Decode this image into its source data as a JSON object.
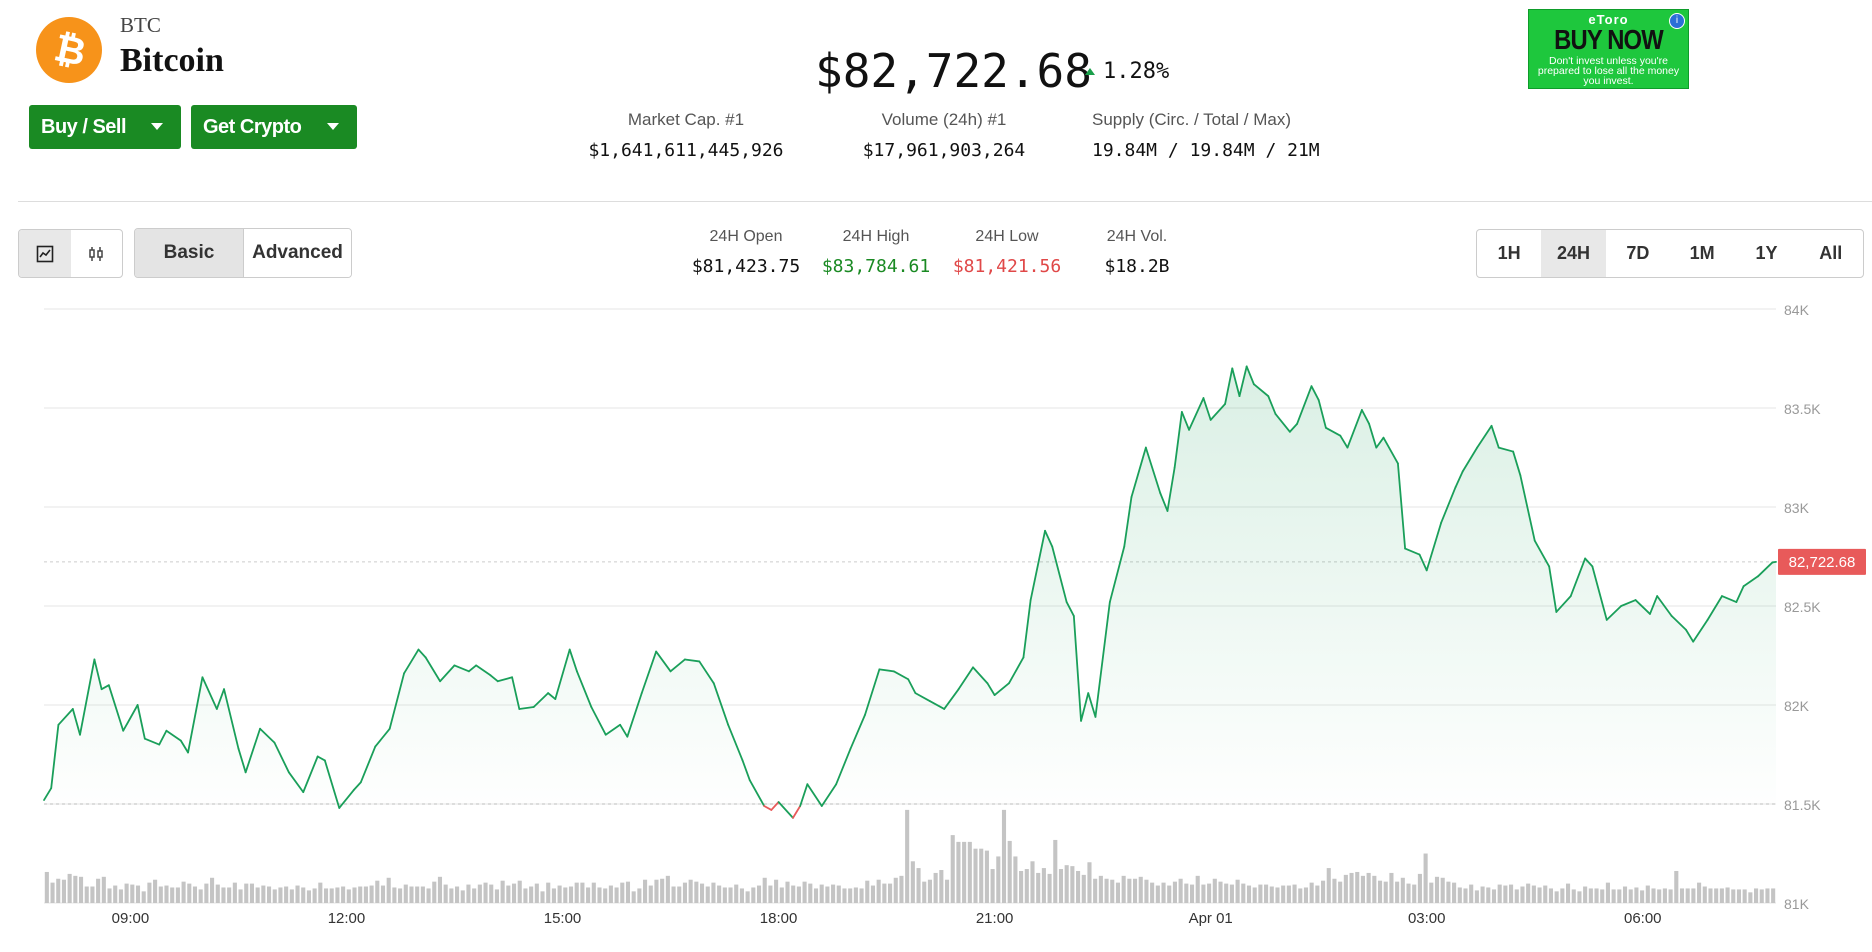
{
  "coin": {
    "symbol": "BTC",
    "name": "Bitcoin",
    "logo_glyph": "₿",
    "price": "$82,722.68",
    "change": "1.28%",
    "accent_color": "#f7931a"
  },
  "actions": {
    "buy_sell_label": "Buy / Sell",
    "get_crypto_label": "Get Crypto"
  },
  "stats": {
    "market_cap_label": "Market Cap. #1",
    "market_cap_value": "$1,641,611,445,926",
    "volume_label": "Volume (24h) #1",
    "volume_value": "$17,961,903,264",
    "supply_label": "Supply (Circ. / Total / Max)",
    "supply_circ": "19.84M",
    "supply_total": "19.84M",
    "supply_max": "21M",
    "supply_sep": "/"
  },
  "ad": {
    "brand": "eToro",
    "cta": "BUY NOW",
    "disclaimer": "Don't invest unless you're prepared to lose all the money you invest.",
    "info_glyph": "i"
  },
  "toolbar": {
    "basic_label": "Basic",
    "advanced_label": "Advanced",
    "ranges": [
      "1H",
      "24H",
      "7D",
      "1M",
      "1Y",
      "All"
    ],
    "active_range": "24H"
  },
  "day_stats": {
    "open_label": "24H Open",
    "open_value": "$81,423.75",
    "high_label": "24H High",
    "high_value": "$83,784.61",
    "low_label": "24H Low",
    "low_value": "$81,421.56",
    "vol_label": "24H Vol.",
    "vol_value": "$18.2B"
  },
  "chart_data": {
    "type": "area",
    "title": "",
    "xlabel": "",
    "ylabel": "",
    "y_ticks": [
      81000,
      81500,
      82000,
      82500,
      83000,
      83500,
      84000
    ],
    "y_tick_labels": [
      "81K",
      "81.5K",
      "82K",
      "82.5K",
      "83K",
      "83.5K",
      "84K"
    ],
    "ylim": [
      81000,
      84000
    ],
    "x_tick_labels": [
      "09:00",
      "12:00",
      "15:00",
      "18:00",
      "21:00",
      "Apr 01",
      "03:00",
      "06:00"
    ],
    "x_tick_hours": [
      0.7,
      3.7,
      6.7,
      9.7,
      12.7,
      15.7,
      18.7,
      21.7
    ],
    "x_range_hours": [
      -0.5,
      23.55
    ],
    "open_price": 81500,
    "current_price": 82722.68,
    "current_price_label": "82,722.68",
    "line_color": "#1a9f5a",
    "down_color": "#e85a5a",
    "price_points": [
      [
        -0.5,
        81520
      ],
      [
        -0.4,
        81580
      ],
      [
        -0.3,
        81900
      ],
      [
        -0.1,
        81980
      ],
      [
        0.0,
        81850
      ],
      [
        0.2,
        82230
      ],
      [
        0.3,
        82080
      ],
      [
        0.4,
        82100
      ],
      [
        0.6,
        81870
      ],
      [
        0.8,
        82000
      ],
      [
        0.9,
        81830
      ],
      [
        1.1,
        81800
      ],
      [
        1.2,
        81870
      ],
      [
        1.4,
        81820
      ],
      [
        1.5,
        81760
      ],
      [
        1.7,
        82140
      ],
      [
        1.9,
        81980
      ],
      [
        2.0,
        82080
      ],
      [
        2.2,
        81780
      ],
      [
        2.3,
        81660
      ],
      [
        2.5,
        81880
      ],
      [
        2.7,
        81810
      ],
      [
        2.9,
        81660
      ],
      [
        3.1,
        81560
      ],
      [
        3.3,
        81740
      ],
      [
        3.4,
        81720
      ],
      [
        3.6,
        81480
      ],
      [
        3.8,
        81570
      ],
      [
        3.9,
        81610
      ],
      [
        4.1,
        81790
      ],
      [
        4.3,
        81880
      ],
      [
        4.5,
        82160
      ],
      [
        4.7,
        82280
      ],
      [
        4.8,
        82240
      ],
      [
        5.0,
        82120
      ],
      [
        5.2,
        82200
      ],
      [
        5.4,
        82170
      ],
      [
        5.5,
        82200
      ],
      [
        5.7,
        82150
      ],
      [
        5.8,
        82120
      ],
      [
        6.0,
        82140
      ],
      [
        6.1,
        81980
      ],
      [
        6.3,
        81990
      ],
      [
        6.5,
        82060
      ],
      [
        6.6,
        82030
      ],
      [
        6.8,
        82280
      ],
      [
        6.9,
        82170
      ],
      [
        7.1,
        81990
      ],
      [
        7.3,
        81850
      ],
      [
        7.5,
        81900
      ],
      [
        7.6,
        81840
      ],
      [
        7.8,
        82060
      ],
      [
        8.0,
        82270
      ],
      [
        8.2,
        82170
      ],
      [
        8.4,
        82230
      ],
      [
        8.6,
        82220
      ],
      [
        8.8,
        82110
      ],
      [
        9.0,
        81900
      ],
      [
        9.2,
        81720
      ],
      [
        9.3,
        81620
      ],
      [
        9.5,
        81490
      ],
      [
        9.6,
        81470
      ],
      [
        9.7,
        81510
      ],
      [
        9.9,
        81430
      ],
      [
        10.0,
        81490
      ],
      [
        10.1,
        81600
      ],
      [
        10.3,
        81490
      ],
      [
        10.5,
        81600
      ],
      [
        10.7,
        81780
      ],
      [
        10.9,
        81950
      ],
      [
        11.1,
        82180
      ],
      [
        11.3,
        82170
      ],
      [
        11.5,
        82130
      ],
      [
        11.6,
        82060
      ],
      [
        11.8,
        82020
      ],
      [
        12.0,
        81980
      ],
      [
        12.2,
        82080
      ],
      [
        12.4,
        82190
      ],
      [
        12.6,
        82110
      ],
      [
        12.7,
        82050
      ],
      [
        12.9,
        82110
      ],
      [
        13.1,
        82240
      ],
      [
        13.2,
        82530
      ],
      [
        13.4,
        82880
      ],
      [
        13.5,
        82800
      ],
      [
        13.7,
        82520
      ],
      [
        13.8,
        82450
      ],
      [
        13.9,
        81920
      ],
      [
        14.0,
        82060
      ],
      [
        14.1,
        81940
      ],
      [
        14.3,
        82520
      ],
      [
        14.5,
        82800
      ],
      [
        14.6,
        83050
      ],
      [
        14.8,
        83300
      ],
      [
        15.0,
        83070
      ],
      [
        15.1,
        82980
      ],
      [
        15.2,
        83200
      ],
      [
        15.3,
        83480
      ],
      [
        15.4,
        83390
      ],
      [
        15.6,
        83550
      ],
      [
        15.7,
        83440
      ],
      [
        15.9,
        83520
      ],
      [
        16.0,
        83700
      ],
      [
        16.1,
        83560
      ],
      [
        16.2,
        83710
      ],
      [
        16.3,
        83620
      ],
      [
        16.5,
        83560
      ],
      [
        16.6,
        83470
      ],
      [
        16.8,
        83380
      ],
      [
        16.9,
        83420
      ],
      [
        17.1,
        83610
      ],
      [
        17.2,
        83540
      ],
      [
        17.3,
        83400
      ],
      [
        17.5,
        83360
      ],
      [
        17.6,
        83300
      ],
      [
        17.8,
        83490
      ],
      [
        17.9,
        83420
      ],
      [
        18.0,
        83300
      ],
      [
        18.1,
        83350
      ],
      [
        18.3,
        83220
      ],
      [
        18.4,
        82790
      ],
      [
        18.6,
        82760
      ],
      [
        18.7,
        82680
      ],
      [
        18.9,
        82920
      ],
      [
        19.1,
        83100
      ],
      [
        19.2,
        83180
      ],
      [
        19.4,
        83300
      ],
      [
        19.6,
        83410
      ],
      [
        19.7,
        83300
      ],
      [
        19.9,
        83280
      ],
      [
        20.0,
        83160
      ],
      [
        20.2,
        82830
      ],
      [
        20.4,
        82700
      ],
      [
        20.5,
        82470
      ],
      [
        20.7,
        82550
      ],
      [
        20.9,
        82740
      ],
      [
        21.0,
        82700
      ],
      [
        21.2,
        82430
      ],
      [
        21.4,
        82500
      ],
      [
        21.6,
        82530
      ],
      [
        21.8,
        82460
      ],
      [
        21.9,
        82550
      ],
      [
        22.1,
        82450
      ],
      [
        22.3,
        82380
      ],
      [
        22.4,
        82320
      ],
      [
        22.6,
        82430
      ],
      [
        22.8,
        82550
      ],
      [
        23.0,
        82520
      ],
      [
        23.1,
        82600
      ],
      [
        23.3,
        82650
      ],
      [
        23.5,
        82720
      ],
      [
        23.55,
        82722.68
      ]
    ],
    "volume_series": [
      0.32,
      0.21,
      0.25,
      0.24,
      0.3,
      0.28,
      0.27,
      0.17,
      0.17,
      0.25,
      0.27,
      0.15,
      0.18,
      0.14,
      0.2,
      0.19,
      0.18,
      0.12,
      0.21,
      0.24,
      0.17,
      0.18,
      0.16,
      0.16,
      0.22,
      0.2,
      0.17,
      0.14,
      0.2,
      0.26,
      0.19,
      0.16,
      0.16,
      0.21,
      0.14,
      0.2,
      0.2,
      0.16,
      0.18,
      0.17,
      0.14,
      0.16,
      0.17,
      0.14,
      0.18,
      0.16,
      0.13,
      0.15,
      0.21,
      0.15,
      0.15,
      0.16,
      0.17,
      0.14,
      0.16,
      0.17,
      0.17,
      0.18,
      0.23,
      0.18,
      0.26,
      0.16,
      0.15,
      0.19,
      0.17,
      0.17,
      0.17,
      0.15,
      0.22,
      0.27,
      0.19,
      0.15,
      0.17,
      0.13,
      0.19,
      0.15,
      0.19,
      0.21,
      0.19,
      0.14,
      0.23,
      0.18,
      0.2,
      0.23,
      0.15,
      0.17,
      0.2,
      0.12,
      0.21,
      0.15,
      0.18,
      0.16,
      0.17,
      0.21,
      0.21,
      0.16,
      0.21,
      0.16,
      0.15,
      0.18,
      0.16,
      0.21,
      0.22,
      0.12,
      0.15,
      0.24,
      0.18,
      0.24,
      0.25,
      0.28,
      0.17,
      0.17,
      0.21,
      0.24,
      0.22,
      0.2,
      0.17,
      0.21,
      0.18,
      0.16,
      0.16,
      0.19,
      0.15,
      0.12,
      0.16,
      0.18,
      0.26,
      0.18,
      0.24,
      0.16,
      0.22,
      0.18,
      0.17,
      0.22,
      0.2,
      0.15,
      0.19,
      0.17,
      0.19,
      0.18,
      0.15,
      0.15,
      0.16,
      0.15,
      0.23,
      0.18,
      0.24,
      0.2,
      0.2,
      0.26,
      0.28,
      0.96,
      0.43,
      0.36,
      0.22,
      0.24,
      0.31,
      0.34,
      0.24,
      0.7,
      0.63,
      0.63,
      0.63,
      0.56,
      0.56,
      0.54,
      0.35,
      0.48,
      0.96,
      0.64,
      0.48,
      0.33,
      0.35,
      0.43,
      0.31,
      0.36,
      0.3,
      0.65,
      0.35,
      0.39,
      0.38,
      0.33,
      0.29,
      0.42,
      0.25,
      0.28,
      0.25,
      0.24,
      0.21,
      0.28,
      0.25,
      0.25,
      0.27,
      0.24,
      0.21,
      0.18,
      0.21,
      0.18,
      0.22,
      0.25,
      0.2,
      0.19,
      0.28,
      0.19,
      0.2,
      0.25,
      0.22,
      0.2,
      0.19,
      0.24,
      0.2,
      0.18,
      0.16,
      0.19,
      0.19,
      0.17,
      0.16,
      0.18,
      0.18,
      0.19,
      0.15,
      0.16,
      0.21,
      0.18,
      0.23,
      0.36,
      0.25,
      0.22,
      0.29,
      0.31,
      0.32,
      0.28,
      0.31,
      0.28,
      0.23,
      0.22,
      0.31,
      0.22,
      0.26,
      0.2,
      0.19,
      0.3,
      0.51,
      0.21,
      0.27,
      0.26,
      0.22,
      0.21,
      0.16,
      0.15,
      0.19,
      0.13,
      0.17,
      0.16,
      0.14,
      0.19,
      0.18,
      0.19,
      0.14,
      0.17,
      0.2,
      0.18,
      0.16,
      0.18,
      0.15,
      0.12,
      0.15,
      0.2,
      0.14,
      0.12,
      0.17,
      0.15,
      0.15,
      0.14,
      0.21,
      0.14,
      0.14,
      0.17,
      0.14,
      0.16,
      0.13,
      0.18,
      0.15,
      0.14,
      0.15,
      0.14,
      0.33,
      0.15,
      0.15,
      0.15,
      0.21,
      0.17,
      0.15,
      0.15,
      0.15,
      0.16,
      0.14,
      0.14,
      0.14,
      0.11,
      0.15,
      0.14,
      0.15,
      0.15
    ]
  }
}
